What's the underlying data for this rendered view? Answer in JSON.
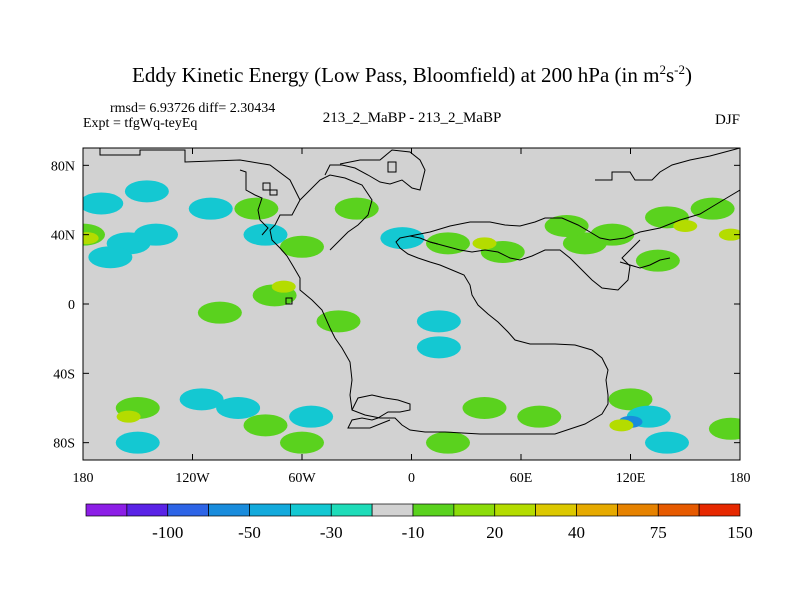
{
  "chart_data": {
    "type": "heatmap",
    "title": "Eddy Kinetic Energy (Low Pass, Bloomfield) at 200 hPa (in m",
    "title_unit_exp1": "2",
    "title_unit_mid": "s",
    "title_unit_exp2": "-2",
    "title_close": ")",
    "stats": "rmsd= 6.93726 diff= 2.30434",
    "expt": "Expt = tfgWq-teyEq",
    "center_label": "213_2_MaBP - 213_2_MaBP",
    "season": "DJF",
    "lon_range": [
      -180,
      180
    ],
    "lat_range": [
      -90,
      90
    ],
    "x_ticks": [
      {
        "value": -180,
        "label": "180"
      },
      {
        "value": -120,
        "label": "120W"
      },
      {
        "value": -60,
        "label": "60W"
      },
      {
        "value": 0,
        "label": "0"
      },
      {
        "value": 60,
        "label": "60E"
      },
      {
        "value": 120,
        "label": "120E"
      },
      {
        "value": 180,
        "label": "180"
      }
    ],
    "y_ticks": [
      {
        "value": 80,
        "label": "80N"
      },
      {
        "value": 40,
        "label": "40N"
      },
      {
        "value": 0,
        "label": "0"
      },
      {
        "value": -40,
        "label": "40S"
      },
      {
        "value": -80,
        "label": "80S"
      }
    ],
    "colorbar": {
      "colors": [
        "#8c1ee6",
        "#5a23e6",
        "#2d64e6",
        "#198cdc",
        "#14aadc",
        "#14c8d2",
        "#1edcb9",
        "#d2d2d2",
        "#5ad21e",
        "#8cdc0a",
        "#b4dc00",
        "#dcc800",
        "#e6aa00",
        "#e68200",
        "#e65a00",
        "#e62800"
      ],
      "labels": [
        "-100",
        "-50",
        "-30",
        "-10",
        "20",
        "40",
        "75",
        "150"
      ]
    },
    "field": [
      {
        "lon": -145,
        "lat": 65,
        "value": -15
      },
      {
        "lon": -170,
        "lat": 58,
        "value": -12
      },
      {
        "lon": -180,
        "lat": 40,
        "value": 18
      },
      {
        "lon": -178,
        "lat": 38,
        "value": 25
      },
      {
        "lon": -155,
        "lat": 35,
        "value": -12
      },
      {
        "lon": -140,
        "lat": 40,
        "value": -12
      },
      {
        "lon": -165,
        "lat": 27,
        "value": -12
      },
      {
        "lon": -110,
        "lat": 55,
        "value": -12
      },
      {
        "lon": -85,
        "lat": 55,
        "value": 15
      },
      {
        "lon": -80,
        "lat": 40,
        "value": -12
      },
      {
        "lon": -60,
        "lat": 33,
        "value": 15
      },
      {
        "lon": -30,
        "lat": 55,
        "value": 15
      },
      {
        "lon": -5,
        "lat": 38,
        "value": -12
      },
      {
        "lon": -75,
        "lat": 5,
        "value": 15
      },
      {
        "lon": -70,
        "lat": 10,
        "value": 25
      },
      {
        "lon": -105,
        "lat": -5,
        "value": 15
      },
      {
        "lon": -40,
        "lat": -10,
        "value": 15
      },
      {
        "lon": 15,
        "lat": -10,
        "value": -12
      },
      {
        "lon": 15,
        "lat": -25,
        "value": -12
      },
      {
        "lon": 20,
        "lat": 35,
        "value": 15
      },
      {
        "lon": 50,
        "lat": 30,
        "value": 15
      },
      {
        "lon": 40,
        "lat": 35,
        "value": 25
      },
      {
        "lon": 95,
        "lat": 35,
        "value": 15
      },
      {
        "lon": 85,
        "lat": 45,
        "value": 15
      },
      {
        "lon": 110,
        "lat": 40,
        "value": 15
      },
      {
        "lon": 140,
        "lat": 50,
        "value": 15
      },
      {
        "lon": 165,
        "lat": 55,
        "value": 15
      },
      {
        "lon": 150,
        "lat": 45,
        "value": 25
      },
      {
        "lon": 175,
        "lat": 40,
        "value": 25
      },
      {
        "lon": 135,
        "lat": 25,
        "value": 15
      },
      {
        "lon": -150,
        "lat": -60,
        "value": 15
      },
      {
        "lon": -155,
        "lat": -65,
        "value": 25
      },
      {
        "lon": -115,
        "lat": -55,
        "value": -12
      },
      {
        "lon": -95,
        "lat": -60,
        "value": -12
      },
      {
        "lon": -55,
        "lat": -65,
        "value": -12
      },
      {
        "lon": -150,
        "lat": -80,
        "value": -12
      },
      {
        "lon": -80,
        "lat": -70,
        "value": 15
      },
      {
        "lon": -60,
        "lat": -80,
        "value": 15
      },
      {
        "lon": 20,
        "lat": -80,
        "value": 15
      },
      {
        "lon": 40,
        "lat": -60,
        "value": 15
      },
      {
        "lon": 70,
        "lat": -65,
        "value": 15
      },
      {
        "lon": 120,
        "lat": -55,
        "value": 15
      },
      {
        "lon": 130,
        "lat": -65,
        "value": -12
      },
      {
        "lon": 120,
        "lat": -68,
        "value": -50
      },
      {
        "lon": 140,
        "lat": -80,
        "value": -12
      },
      {
        "lon": 175,
        "lat": -72,
        "value": 15
      },
      {
        "lon": 115,
        "lat": -70,
        "value": 25
      }
    ]
  }
}
